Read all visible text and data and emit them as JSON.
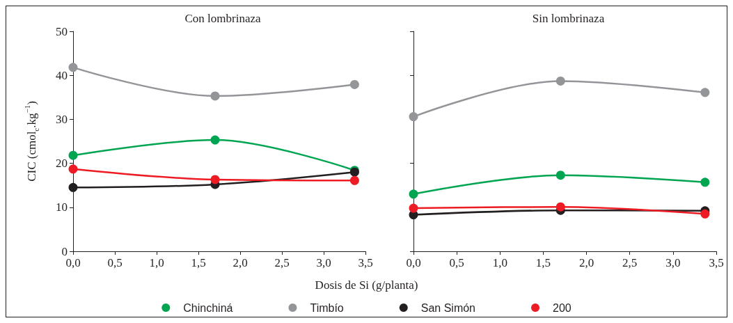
{
  "chart_data": [
    {
      "type": "line",
      "title": "Con lombrinaza",
      "xlabel": "Dosis de Si (g/planta)",
      "ylabel": "CIC (cmol$_{c}$.kg$^{−1}$)",
      "x": [
        0,
        1.7,
        3.37
      ],
      "series": [
        {
          "name": "Chinchiná",
          "color": "#00a551",
          "values": [
            21.8,
            25.3,
            18.4
          ]
        },
        {
          "name": "Timbío",
          "color": "#949599",
          "values": [
            41.8,
            35.3,
            37.9
          ]
        },
        {
          "name": "San Simón",
          "color": "#231f20",
          "values": [
            14.5,
            15.2,
            18.0
          ]
        },
        {
          "name": "200",
          "color": "#ed1c24",
          "values": [
            18.7,
            16.3,
            16.1
          ]
        }
      ],
      "xlim": [
        0,
        3.5
      ],
      "xticks": [
        {
          "value": 0,
          "label": "0,0"
        },
        {
          "value": 0.5,
          "label": "0,5"
        },
        {
          "value": 1,
          "label": "1,0"
        },
        {
          "value": 1.5,
          "label": "1,5"
        },
        {
          "value": 2,
          "label": "2,0"
        },
        {
          "value": 2.5,
          "label": "2,5"
        },
        {
          "value": 3,
          "label": "3,0"
        },
        {
          "value": 3.5,
          "label": "3,5"
        }
      ],
      "ylim": [
        0,
        50
      ],
      "yticks": [
        0,
        10,
        20,
        30,
        40,
        50
      ],
      "grid": false,
      "legend": "bottom",
      "marker": "circle",
      "line_style": "solid"
    },
    {
      "type": "line",
      "title": "Sin lombrinaza",
      "x": [
        0,
        1.7,
        3.37
      ],
      "series": [
        {
          "color": "#00a551",
          "values": [
            13.0,
            17.3,
            15.7
          ]
        },
        {
          "color": "#949599",
          "values": [
            30.6,
            38.7,
            36.1
          ]
        },
        {
          "color": "#231f20",
          "values": [
            8.3,
            9.3,
            9.2
          ]
        },
        {
          "color": "#ed1c24",
          "values": [
            9.8,
            10.1,
            8.5
          ]
        }
      ],
      "xlim": [
        0,
        3.5
      ],
      "xticks": [
        {
          "value": 0,
          "label": "0,0"
        },
        {
          "value": 0.5,
          "label": "0,5"
        },
        {
          "value": 1,
          "label": "1,0"
        },
        {
          "value": 1.5,
          "label": "1,5"
        },
        {
          "value": 2,
          "label": "2,0"
        },
        {
          "value": 2.5,
          "label": "2,5"
        },
        {
          "value": 3,
          "label": "3,0"
        },
        {
          "value": 3.5,
          "label": "3,5"
        }
      ],
      "ylim": [
        0,
        50
      ],
      "yticks": [
        0,
        10,
        20,
        30,
        40,
        50
      ],
      "tick_labels": "x",
      "grid": false,
      "legend": false,
      "marker": "circle",
      "line_style": "solid"
    }
  ]
}
